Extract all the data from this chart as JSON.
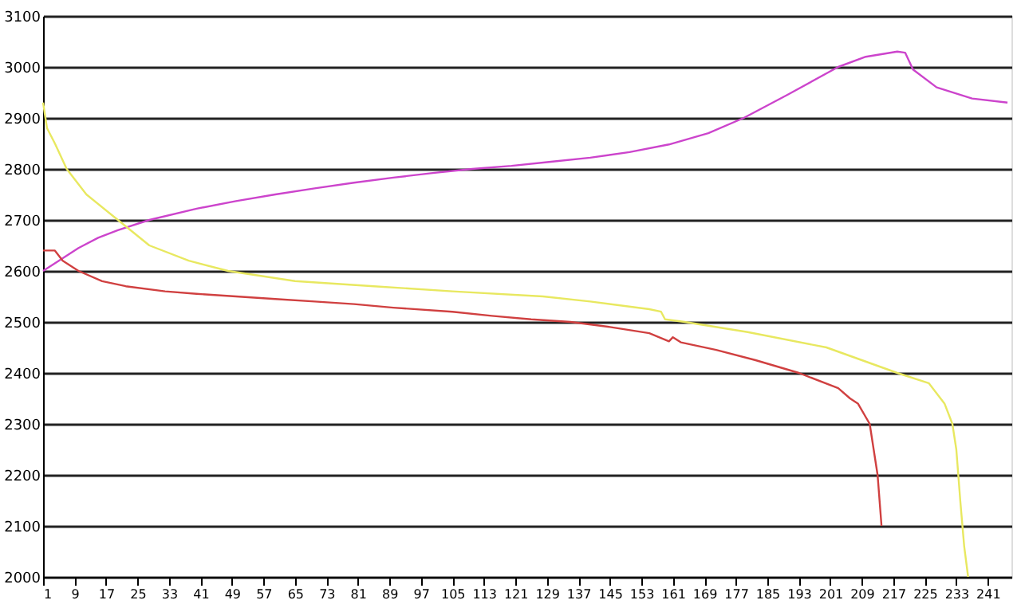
{
  "chart_data": {
    "type": "line",
    "xlim": [
      1,
      247
    ],
    "xticks": [
      1,
      9,
      17,
      25,
      33,
      41,
      49,
      57,
      65,
      73,
      81,
      89,
      97,
      105,
      113,
      121,
      129,
      137,
      145,
      153,
      161,
      169,
      177,
      185,
      193,
      201,
      209,
      217,
      225,
      233,
      241
    ],
    "ylim": [
      2000,
      3100
    ],
    "yticks": [
      2000,
      2100,
      2200,
      2300,
      2400,
      2500,
      2600,
      2700,
      2800,
      2900,
      3000,
      3100
    ],
    "grid": "y",
    "legend": false,
    "marker": "none",
    "line_style": "solid",
    "series": [
      {
        "color": "#cc44cc",
        "x": [
          1,
          5,
          10,
          15,
          20,
          28,
          40,
          50,
          60,
          70,
          80,
          90,
          100,
          110,
          120,
          130,
          140,
          150,
          160,
          170,
          179,
          190,
          203,
          210,
          218,
          220,
          222,
          228,
          237,
          246
        ],
        "values": [
          2600,
          2620,
          2645,
          2665,
          2680,
          2700,
          2722,
          2737,
          2750,
          2762,
          2773,
          2783,
          2792,
          2800,
          2806,
          2814,
          2822,
          2833,
          2848,
          2870,
          2900,
          2945,
          3000,
          3020,
          3030,
          3028,
          2995,
          2960,
          2938,
          2930
        ]
      },
      {
        "color": "#e8e860",
        "x": [
          1,
          2,
          4,
          7,
          12,
          20,
          28,
          38,
          48,
          65,
          85,
          105,
          128,
          140,
          155,
          158,
          159,
          164,
          180,
          200,
          218,
          226,
          230,
          232,
          233,
          234,
          235,
          236
        ],
        "values": [
          2930,
          2880,
          2850,
          2800,
          2750,
          2700,
          2650,
          2620,
          2600,
          2580,
          2570,
          2560,
          2550,
          2540,
          2525,
          2520,
          2505,
          2500,
          2480,
          2450,
          2400,
          2380,
          2340,
          2300,
          2250,
          2150,
          2060,
          2000
        ]
      },
      {
        "color": "#d04040",
        "x": [
          1,
          4,
          6,
          10,
          16,
          22,
          32,
          40,
          50,
          60,
          70,
          80,
          90,
          105,
          115,
          125,
          135,
          145,
          155,
          160,
          161,
          163,
          172,
          182,
          193,
          203,
          206,
          208,
          211,
          212,
          213,
          214
        ],
        "values": [
          2640,
          2640,
          2620,
          2600,
          2580,
          2570,
          2560,
          2555,
          2550,
          2545,
          2540,
          2535,
          2528,
          2520,
          2512,
          2505,
          2500,
          2490,
          2478,
          2462,
          2470,
          2460,
          2445,
          2425,
          2400,
          2370,
          2350,
          2340,
          2300,
          2250,
          2200,
          2100
        ]
      }
    ]
  }
}
